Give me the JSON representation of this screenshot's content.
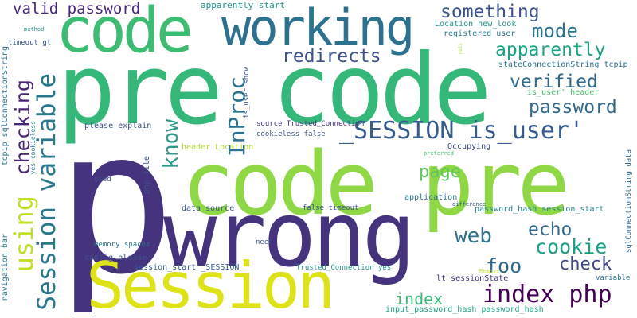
{
  "palette": {
    "dark_purple": "#46337e",
    "purple": "#472d7b",
    "indigo": "#3b528b",
    "blue": "#365c8d",
    "steel": "#2c728e",
    "teal": "#21918c",
    "green_teal": "#1fa187",
    "green": "#35b779",
    "light_green": "#6ece58",
    "lime": "#90d743",
    "yellow": "#dde318"
  },
  "words": [
    {
      "text": "p",
      "color": "#46337e",
      "vertical": false
    },
    {
      "text": "pre code",
      "color": "#35b779",
      "vertical": false
    },
    {
      "text": "code pre",
      "color": "#8fd744",
      "vertical": false
    },
    {
      "text": "wrong",
      "color": "#46337e",
      "vertical": false
    },
    {
      "text": "Session",
      "color": "#dde318",
      "vertical": false
    },
    {
      "text": "code",
      "color": "#3fbc73",
      "vertical": false
    },
    {
      "text": "working",
      "color": "#2c728e",
      "vertical": false
    },
    {
      "text": "_SESSION is_user'",
      "color": "#365c8d",
      "vertical": false
    },
    {
      "text": "index php",
      "color": "#440154",
      "vertical": false
    },
    {
      "text": "Session variable",
      "color": "#2a788e",
      "vertical": true
    },
    {
      "text": "redirects",
      "color": "#3b528b",
      "vertical": false
    },
    {
      "text": "something",
      "color": "#3b528b",
      "vertical": false
    },
    {
      "text": "mode",
      "color": "#2c728e",
      "vertical": false
    },
    {
      "text": "apparently",
      "color": "#1fa187",
      "vertical": false
    },
    {
      "text": "verified",
      "color": "#31688e",
      "vertical": false
    },
    {
      "text": "password",
      "color": "#31688e",
      "vertical": false
    },
    {
      "text": "valid password",
      "color": "#482878",
      "vertical": false
    },
    {
      "text": "InProc",
      "color": "#2c728e",
      "vertical": true
    },
    {
      "text": "know",
      "color": "#2a9d8a",
      "vertical": true
    },
    {
      "text": "checking",
      "color": "#482575",
      "vertical": true
    },
    {
      "text": "using",
      "color": "#c0df25",
      "vertical": true
    },
    {
      "text": "page",
      "color": "#5ec962",
      "vertical": false
    },
    {
      "text": "web",
      "color": "#2c728e",
      "vertical": false
    },
    {
      "text": "echo",
      "color": "#31688e",
      "vertical": false
    },
    {
      "text": "cookie",
      "color": "#1f9e89",
      "vertical": false
    },
    {
      "text": "check",
      "color": "#3e4989",
      "vertical": false
    },
    {
      "text": "foo",
      "color": "#31688e",
      "vertical": false
    },
    {
      "text": "index",
      "color": "#3aba76",
      "vertical": false
    },
    {
      "text": "apparently start",
      "color": "#21918c",
      "vertical": false
    },
    {
      "text": "Location new_look",
      "color": "#21918c",
      "vertical": false
    },
    {
      "text": "registered user",
      "color": "#2a788e",
      "vertical": false
    },
    {
      "text": "stateConnectionString tcpip",
      "color": "#2c728e",
      "vertical": false
    },
    {
      "text": "is_user' header",
      "color": "#4ac16d",
      "vertical": false
    },
    {
      "text": "source Trusted_Connection",
      "color": "#46337e",
      "vertical": false
    },
    {
      "text": "cookieless false",
      "color": "#3b528b",
      "vertical": false
    },
    {
      "text": "header Location",
      "color": "#b5de2b",
      "vertical": false
    },
    {
      "text": "Occupying",
      "color": "#3e4989",
      "vertical": false
    },
    {
      "text": "preferred",
      "color": "#4ac16d",
      "vertical": false
    },
    {
      "text": "please explain",
      "color": "#3b528b",
      "vertical": false
    },
    {
      "text": "php file",
      "color": "#3b528b",
      "vertical": true
    },
    {
      "text": "used",
      "color": "#3b528b",
      "vertical": false
    },
    {
      "text": "application",
      "color": "#2c728e",
      "vertical": false
    },
    {
      "text": "difference",
      "color": "#365c8d",
      "vertical": false
    },
    {
      "text": "data source",
      "color": "#3b528b",
      "vertical": false
    },
    {
      "text": "false timeout",
      "color": "#3b528b",
      "vertical": false
    },
    {
      "text": "password_hash session_start",
      "color": "#277f8e",
      "vertical": false
    },
    {
      "text": "memory spaces",
      "color": "#2a788e",
      "vertical": false
    },
    {
      "text": "config please",
      "color": "#3b528b",
      "vertical": false
    },
    {
      "text": "need",
      "color": "#3b528b",
      "vertical": false
    },
    {
      "text": "session_start _SESSION",
      "color": "#365c8d",
      "vertical": false
    },
    {
      "text": "Trusted_Connection yes",
      "color": "#21918c",
      "vertical": false
    },
    {
      "text": "lt sessionState",
      "color": "#46337e",
      "vertical": false
    },
    {
      "text": "variable",
      "color": "#2c728e",
      "vertical": false
    },
    {
      "text": "Remove",
      "color": "#c2df23",
      "vertical": false
    },
    {
      "text": "input_password_hash password_hash",
      "color": "#1fa187",
      "vertical": false
    },
    {
      "text": "navigation bar",
      "color": "#2a788e",
      "vertical": true
    },
    {
      "text": "tcpip sqlConnectionString",
      "color": "#2c728e",
      "vertical": true
    },
    {
      "text": "sqlConnectionString data",
      "color": "#31688e",
      "vertical": true
    },
    {
      "text": "timeout gt",
      "color": "#3b528b",
      "vertical": false
    },
    {
      "text": "yes cookieless",
      "color": "#2a788e",
      "vertical": true
    },
    {
      "text": "is_user show",
      "color": "#3b528b",
      "vertical": true
    },
    {
      "text": "method",
      "color": "#21918c",
      "vertical": false
    },
    {
      "text": "null",
      "color": "#9fda3a",
      "vertical": true
    }
  ]
}
